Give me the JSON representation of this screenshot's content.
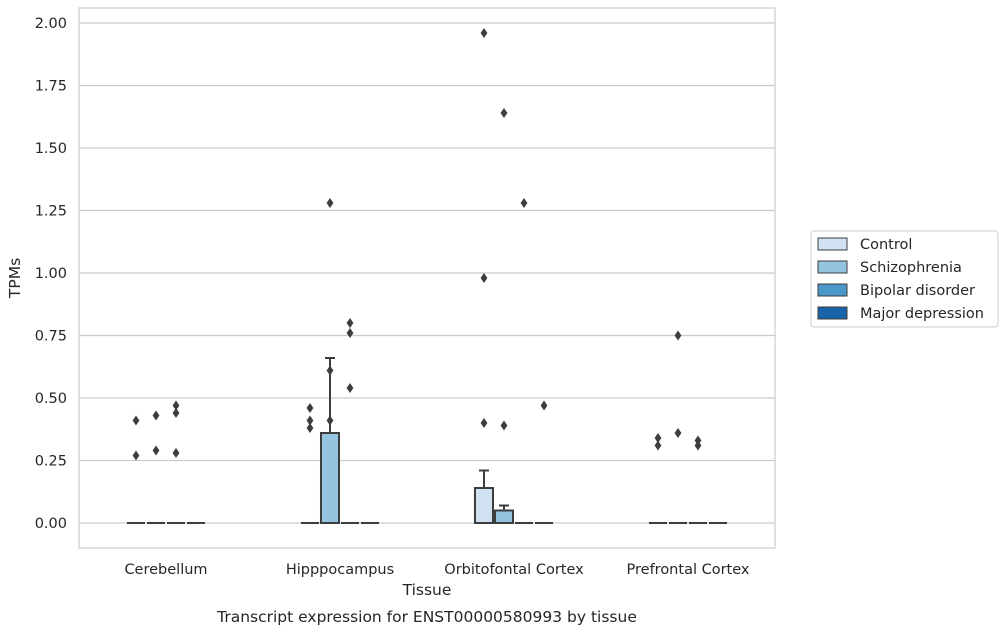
{
  "chart_data": {
    "type": "box",
    "title": "",
    "caption": "Transcript expression for ENST00000580993 by tissue",
    "xlabel": "Tissue",
    "ylabel": "TPMs",
    "ylim": [
      -0.1,
      2.06
    ],
    "yticks": [
      0.0,
      0.25,
      0.5,
      0.75,
      1.0,
      1.25,
      1.5,
      1.75,
      2.0
    ],
    "ytick_labels": [
      "0.00",
      "0.25",
      "0.50",
      "0.75",
      "1.00",
      "1.25",
      "1.50",
      "1.75",
      "2.00"
    ],
    "grid": true,
    "legend_position": "right",
    "categories": [
      "Cerebellum",
      "Hipppocampus",
      "Orbitofontal Cortex",
      "Prefrontal Cortex"
    ],
    "series": [
      {
        "name": "Control",
        "color": "#d0e1f2",
        "boxes": [
          {
            "q1": 0,
            "median": 0,
            "q3": 0,
            "whisker_low": 0,
            "whisker_high": 0,
            "outliers": [
              0.27,
              0.41
            ]
          },
          {
            "q1": 0,
            "median": 0,
            "q3": 0,
            "whisker_low": 0,
            "whisker_high": 0,
            "outliers": [
              0.38,
              0.41,
              0.46
            ]
          },
          {
            "q1": 0,
            "median": 0,
            "q3": 0.14,
            "whisker_low": 0,
            "whisker_high": 0.21,
            "outliers": [
              0.4,
              0.98,
              1.96
            ]
          },
          {
            "q1": 0,
            "median": 0,
            "q3": 0,
            "whisker_low": 0,
            "whisker_high": 0,
            "outliers": [
              0.31,
              0.34
            ]
          }
        ]
      },
      {
        "name": "Schizophrenia",
        "color": "#94c4df",
        "boxes": [
          {
            "q1": 0,
            "median": 0,
            "q3": 0,
            "whisker_low": 0,
            "whisker_high": 0,
            "outliers": [
              0.29,
              0.43
            ]
          },
          {
            "q1": 0,
            "median": 0,
            "q3": 0.36,
            "whisker_low": 0,
            "whisker_high": 0.66,
            "outliers": [
              0.41,
              0.61,
              1.28
            ]
          },
          {
            "q1": 0,
            "median": 0,
            "q3": 0.05,
            "whisker_low": 0,
            "whisker_high": 0.07,
            "outliers": [
              0.39,
              1.64
            ]
          },
          {
            "q1": 0,
            "median": 0,
            "q3": 0,
            "whisker_low": 0,
            "whisker_high": 0,
            "outliers": [
              0.75,
              0.36
            ]
          }
        ]
      },
      {
        "name": "Bipolar disorder",
        "color": "#4a98c9",
        "boxes": [
          {
            "q1": 0,
            "median": 0,
            "q3": 0,
            "whisker_low": 0,
            "whisker_high": 0,
            "outliers": [
              0.28,
              0.44,
              0.47
            ]
          },
          {
            "q1": 0,
            "median": 0,
            "q3": 0,
            "whisker_low": 0,
            "whisker_high": 0,
            "outliers": [
              0.54,
              0.76,
              0.8
            ]
          },
          {
            "q1": 0,
            "median": 0,
            "q3": 0,
            "whisker_low": 0,
            "whisker_high": 0,
            "outliers": [
              1.28
            ]
          },
          {
            "q1": 0,
            "median": 0,
            "q3": 0,
            "whisker_low": 0,
            "whisker_high": 0,
            "outliers": [
              0.31,
              0.33
            ]
          }
        ]
      },
      {
        "name": "Major depression",
        "color": "#1764ab",
        "boxes": [
          {
            "q1": 0,
            "median": 0,
            "q3": 0,
            "whisker_low": 0,
            "whisker_high": 0,
            "outliers": []
          },
          {
            "q1": 0,
            "median": 0,
            "q3": 0,
            "whisker_low": 0,
            "whisker_high": 0,
            "outliers": []
          },
          {
            "q1": 0,
            "median": 0,
            "q3": 0,
            "whisker_low": 0,
            "whisker_high": 0,
            "outliers": [
              0.47
            ]
          },
          {
            "q1": 0,
            "median": 0,
            "q3": 0,
            "whisker_low": 0,
            "whisker_high": 0,
            "outliers": []
          }
        ]
      }
    ]
  }
}
